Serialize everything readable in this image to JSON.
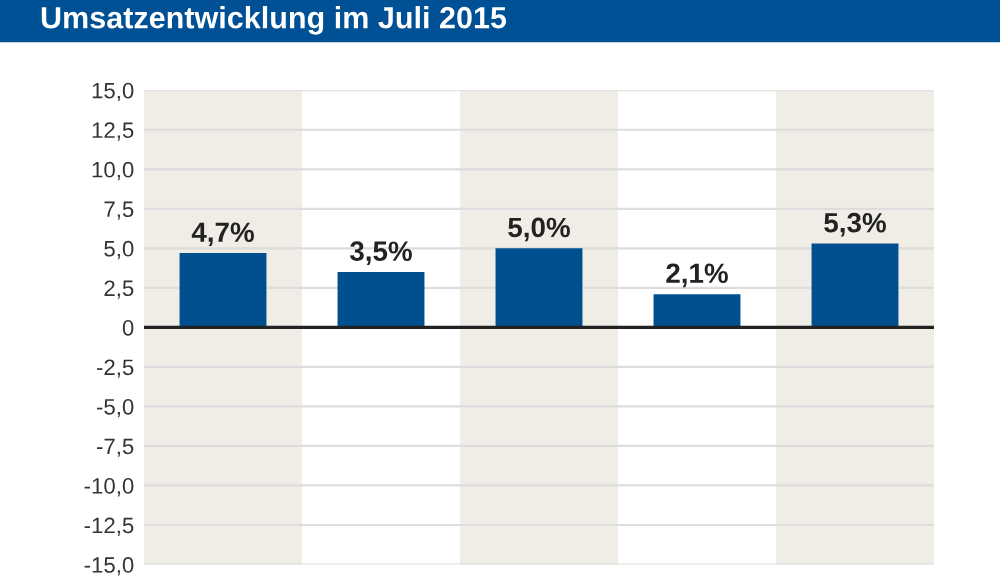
{
  "chart_data": {
    "type": "bar",
    "title": "Umsatzentwicklung im Juli 2015",
    "categories": [
      null,
      null,
      null,
      null,
      null
    ],
    "series": [
      {
        "color": "#00508f",
        "values": [
          4.7,
          3.5,
          5.0,
          2.1,
          5.3
        ]
      }
    ],
    "value_labels": [
      "4,7%",
      "3,5%",
      "5,0%",
      "2,1%",
      "5,3%"
    ],
    "ylim": [
      -15,
      15
    ],
    "yticks": [
      {
        "value": 15,
        "label": "15,0"
      },
      {
        "value": 12.5,
        "label": "12,5"
      },
      {
        "value": 10,
        "label": "10,0"
      },
      {
        "value": 7.5,
        "label": "7,5"
      },
      {
        "value": 5,
        "label": "5,0"
      },
      {
        "value": 2.5,
        "label": "2,5"
      },
      0,
      {
        "value": -2.5,
        "label": "-2,5"
      },
      {
        "value": -5,
        "label": "-5,0"
      },
      {
        "value": -7.5,
        "label": "-7,5"
      },
      {
        "value": -10,
        "label": "-10,0"
      },
      {
        "value": -12.5,
        "label": "-12,5"
      },
      {
        "value": -15,
        "label": "-15,0"
      }
    ],
    "grid": "y"
  }
}
